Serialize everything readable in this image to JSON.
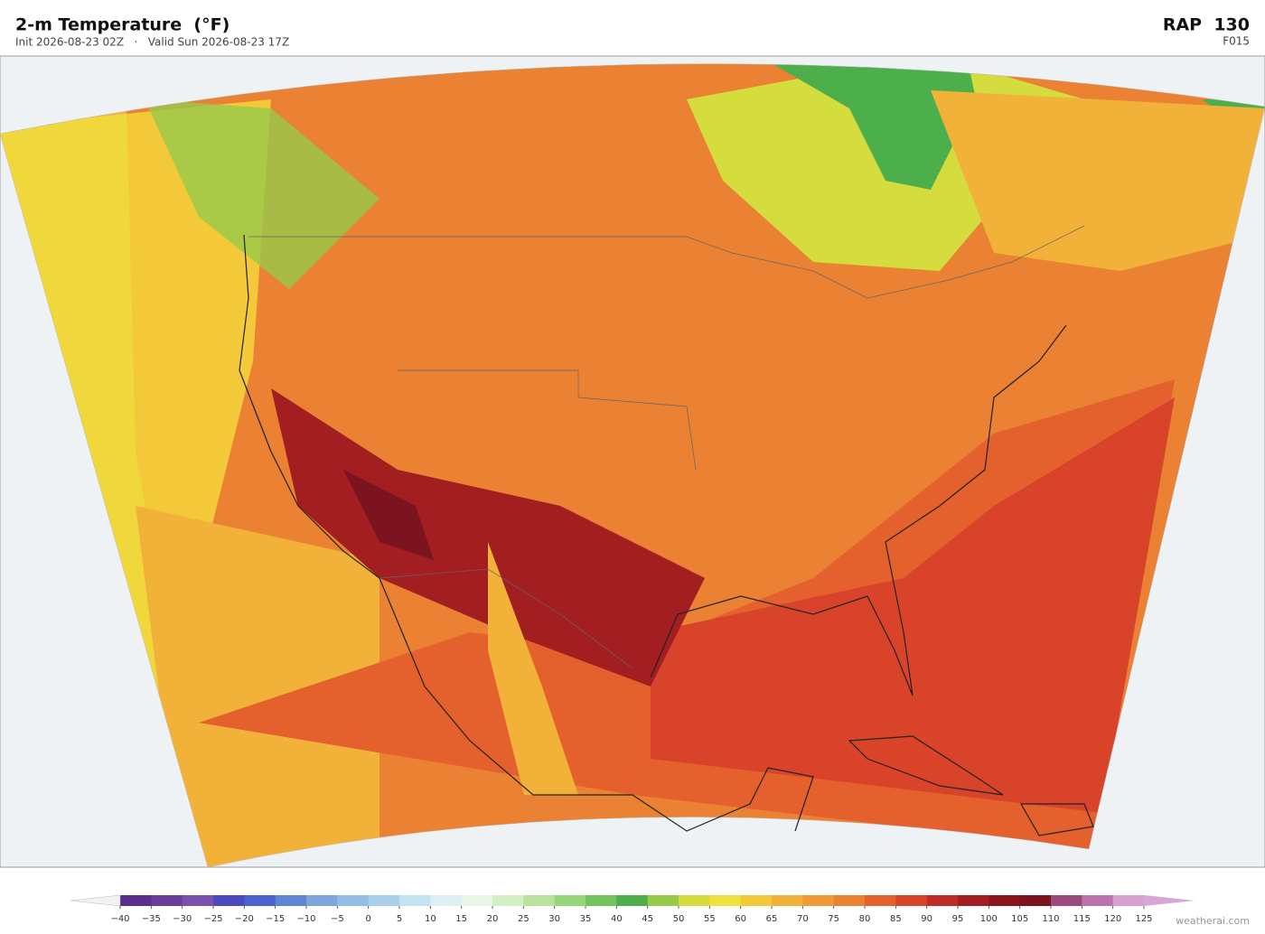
{
  "header": {
    "title": "2-m Temperature  (°F)",
    "subtitle": "Init 2026-08-23 02Z   ·   Valid Sun 2026-08-23 17Z",
    "model": "RAP  130",
    "forecast_hour": "F015"
  },
  "colorbar": {
    "ticks": [
      {
        "value": -40,
        "label": "−40"
      },
      {
        "value": -35,
        "label": "−35"
      },
      {
        "value": -30,
        "label": "−30"
      },
      {
        "value": -25,
        "label": "−25"
      },
      {
        "value": -20,
        "label": "−20"
      },
      {
        "value": -15,
        "label": "−15"
      },
      {
        "value": -10,
        "label": "−10"
      },
      {
        "value": -5,
        "label": "−5"
      },
      0,
      5,
      10,
      15,
      20,
      25,
      30,
      35,
      40,
      45,
      50,
      55,
      60,
      65,
      70,
      75,
      80,
      85,
      90,
      95,
      100,
      105,
      110,
      115,
      120,
      125
    ],
    "colors": [
      "#5b2d8e",
      "#6a3d9a",
      "#7b52ab",
      "#4b49c0",
      "#4b62cc",
      "#5f85d4",
      "#7fa6dc",
      "#93bde2",
      "#a9d0e8",
      "#c4e3f0",
      "#dcf0f4",
      "#e8f6e6",
      "#d3efc6",
      "#b9e39c",
      "#98d67a",
      "#72c35c",
      "#4caf4c",
      "#97c94a",
      "#d4dc3e",
      "#efe23d",
      "#f3c93a",
      "#f2b23a",
      "#ef9a37",
      "#ea8133",
      "#e4612d",
      "#d8432a",
      "#bf2b26",
      "#a31e21",
      "#8a161c",
      "#7c1420",
      "#9c4a7d",
      "#bb72ad",
      "#d7a2d0"
    ],
    "extend_colors": [
      "#f2f2f2",
      "#d9a6d4"
    ]
  },
  "footer": {
    "watermark": "weatherai.com"
  }
}
